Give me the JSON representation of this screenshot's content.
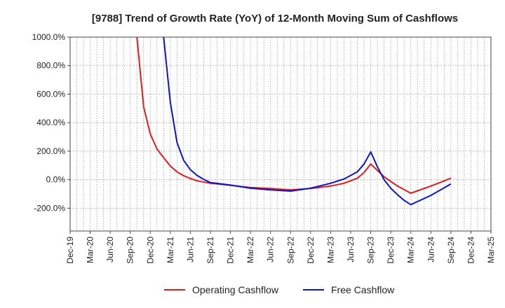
{
  "chart_data": {
    "type": "line",
    "title": "[9788]  Trend of Growth Rate (YoY) of 12-Month Moving Sum of Cashflows",
    "xlabel": "",
    "ylabel": "",
    "ylim": [
      -360,
      1000
    ],
    "y_ticks": [
      1000,
      800,
      600,
      400,
      200,
      0,
      -200
    ],
    "y_tick_labels": [
      "1000.0%",
      "800.0%",
      "600.0%",
      "400.0%",
      "200.0%",
      "0.0%",
      "-200.0%"
    ],
    "x_tick_labels": [
      "Dec-19",
      "Mar-20",
      "Jun-20",
      "Sep-20",
      "Dec-20",
      "Mar-21",
      "Jun-21",
      "Sep-21",
      "Dec-21",
      "Mar-22",
      "Jun-22",
      "Sep-22",
      "Dec-22",
      "Mar-23",
      "Jun-23",
      "Sep-23",
      "Dec-23",
      "Mar-24",
      "Jun-24",
      "Sep-24",
      "Dec-24",
      "Mar-25"
    ],
    "grid": true,
    "legend_position": "bottom",
    "series": [
      {
        "name": "Operating Cashflow",
        "color": "#e31a1c",
        "points": [
          {
            "x": "Oct-20",
            "y": 1000
          },
          {
            "x": "Nov-20",
            "y": 510
          },
          {
            "x": "Dec-20",
            "y": 320
          },
          {
            "x": "Jan-21",
            "y": 215
          },
          {
            "x": "Feb-21",
            "y": 155
          },
          {
            "x": "Mar-21",
            "y": 95
          },
          {
            "x": "Apr-21",
            "y": 55
          },
          {
            "x": "May-21",
            "y": 28
          },
          {
            "x": "Jun-21",
            "y": 8
          },
          {
            "x": "Jul-21",
            "y": -8
          },
          {
            "x": "Sep-21",
            "y": -25
          },
          {
            "x": "Dec-21",
            "y": -40
          },
          {
            "x": "Mar-22",
            "y": -55
          },
          {
            "x": "Jun-22",
            "y": -62
          },
          {
            "x": "Sep-22",
            "y": -72
          },
          {
            "x": "Dec-22",
            "y": -62
          },
          {
            "x": "Mar-23",
            "y": -45
          },
          {
            "x": "May-23",
            "y": -25
          },
          {
            "x": "Jul-23",
            "y": 10
          },
          {
            "x": "Aug-23",
            "y": 50
          },
          {
            "x": "Sep-23",
            "y": 110
          },
          {
            "x": "Oct-23",
            "y": 65
          },
          {
            "x": "Nov-23",
            "y": 20
          },
          {
            "x": "Jan-24",
            "y": -45
          },
          {
            "x": "Mar-24",
            "y": -95
          },
          {
            "x": "Jun-24",
            "y": -45
          },
          {
            "x": "Sep-24",
            "y": 10
          }
        ]
      },
      {
        "name": "Free Cashflow",
        "color": "#0a14cc",
        "points": [
          {
            "x": "Feb-21",
            "y": 1000
          },
          {
            "x": "Mar-21",
            "y": 540
          },
          {
            "x": "Apr-21",
            "y": 260
          },
          {
            "x": "May-21",
            "y": 135
          },
          {
            "x": "Jun-21",
            "y": 70
          },
          {
            "x": "Jul-21",
            "y": 30
          },
          {
            "x": "Aug-21",
            "y": 2
          },
          {
            "x": "Sep-21",
            "y": -20
          },
          {
            "x": "Dec-21",
            "y": -38
          },
          {
            "x": "Mar-22",
            "y": -60
          },
          {
            "x": "Jun-22",
            "y": -72
          },
          {
            "x": "Sep-22",
            "y": -80
          },
          {
            "x": "Dec-22",
            "y": -60
          },
          {
            "x": "Mar-23",
            "y": -25
          },
          {
            "x": "May-23",
            "y": 5
          },
          {
            "x": "Jul-23",
            "y": 55
          },
          {
            "x": "Aug-23",
            "y": 110
          },
          {
            "x": "Sep-23",
            "y": 195
          },
          {
            "x": "Oct-23",
            "y": 90
          },
          {
            "x": "Nov-23",
            "y": 0
          },
          {
            "x": "Dec-23",
            "y": -60
          },
          {
            "x": "Jan-24",
            "y": -105
          },
          {
            "x": "Feb-24",
            "y": -145
          },
          {
            "x": "Mar-24",
            "y": -175
          },
          {
            "x": "Jun-24",
            "y": -110
          },
          {
            "x": "Sep-24",
            "y": -30
          }
        ]
      }
    ]
  }
}
